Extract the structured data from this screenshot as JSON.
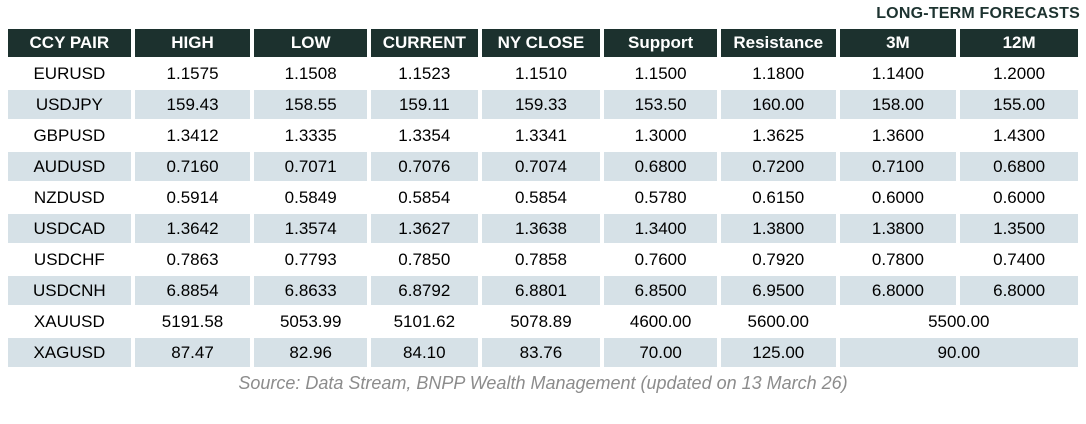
{
  "title": "LONG-TERM FORECASTS",
  "chart_data": {
    "type": "table",
    "title": "LONG-TERM FORECASTS",
    "columns": [
      "CCY PAIR",
      "HIGH",
      "LOW",
      "CURRENT",
      "NY CLOSE",
      "Support",
      "Resistance",
      "3M",
      "12M"
    ],
    "long_term_group_columns": [
      "3M",
      "12M"
    ],
    "rows": [
      {
        "pair": "EURUSD",
        "values": [
          "1.1575",
          "1.1508",
          "1.1523",
          "1.1510",
          "1.1500",
          "1.1800",
          "1.1400",
          "1.2000"
        ]
      },
      {
        "pair": "USDJPY",
        "values": [
          "159.43",
          "158.55",
          "159.11",
          "159.33",
          "153.50",
          "160.00",
          "158.00",
          "155.00"
        ]
      },
      {
        "pair": "GBPUSD",
        "values": [
          "1.3412",
          "1.3335",
          "1.3354",
          "1.3341",
          "1.3000",
          "1.3625",
          "1.3600",
          "1.4300"
        ]
      },
      {
        "pair": "AUDUSD",
        "values": [
          "0.7160",
          "0.7071",
          "0.7076",
          "0.7074",
          "0.6800",
          "0.7200",
          "0.7100",
          "0.6800"
        ]
      },
      {
        "pair": "NZDUSD",
        "values": [
          "0.5914",
          "0.5849",
          "0.5854",
          "0.5854",
          "0.5780",
          "0.6150",
          "0.6000",
          "0.6000"
        ]
      },
      {
        "pair": "USDCAD",
        "values": [
          "1.3642",
          "1.3574",
          "1.3627",
          "1.3638",
          "1.3400",
          "1.3800",
          "1.3800",
          "1.3500"
        ]
      },
      {
        "pair": "USDCHF",
        "values": [
          "0.7863",
          "0.7793",
          "0.7850",
          "0.7858",
          "0.7600",
          "0.7920",
          "0.7800",
          "0.7400"
        ]
      },
      {
        "pair": "USDCNH",
        "values": [
          "6.8854",
          "6.8633",
          "6.8792",
          "6.8801",
          "6.8500",
          "6.9500",
          "6.8000",
          "6.8000"
        ]
      },
      {
        "pair": "XAUUSD",
        "values": [
          "5191.58",
          "5053.99",
          "5101.62",
          "5078.89",
          "4600.00",
          "5600.00"
        ],
        "long_term_merged": "5500.00"
      },
      {
        "pair": "XAGUSD",
        "values": [
          "87.47",
          "82.96",
          "84.10",
          "83.76",
          "70.00",
          "125.00"
        ],
        "long_term_merged": "90.00"
      }
    ],
    "source": "Source: Data Stream, BNPP Wealth Management (updated on 13 March 26)"
  },
  "source": "Source: Data Stream, BNPP Wealth Management (updated on 13 March 26)",
  "colors": {
    "header_bg": "#1c312e",
    "stripe_bg": "#d6e1e7",
    "title_color": "#1d3330",
    "source_color": "#8c8c8c",
    "header_text": "#ffffff"
  }
}
